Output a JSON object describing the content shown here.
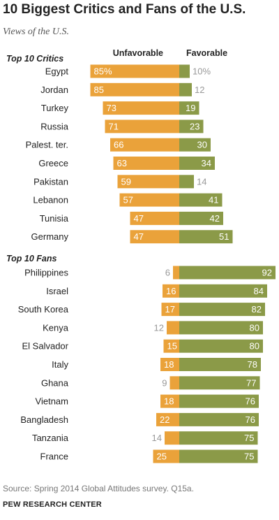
{
  "title": "10 Biggest Critics and Fans of the U.S.",
  "subtitle": "Views of the U.S.",
  "footer": {
    "source": "Source: Spring 2014 Global Attitudes survey. Q15a.",
    "org": "PEW RESEARCH CENTER"
  },
  "colors": {
    "unfavorable": "#eaa23a",
    "favorable": "#8b9a48",
    "label_on_bar": "#ffffff",
    "label_outside": "#999999",
    "text": "#222222"
  },
  "chart_data": {
    "type": "bar",
    "orientation": "horizontal-diverging",
    "column_headers": {
      "unfavorable": "Unfavorable",
      "favorable": "Favorable"
    },
    "groups": [
      {
        "name": "Top 10 Critics",
        "rows": [
          {
            "country": "Egypt",
            "unfavorable": 85,
            "favorable": 10,
            "unfavorable_label": "85%",
            "favorable_label": "10%"
          },
          {
            "country": "Jordan",
            "unfavorable": 85,
            "favorable": 12,
            "unfavorable_label": "85",
            "favorable_label": "12"
          },
          {
            "country": "Turkey",
            "unfavorable": 73,
            "favorable": 19,
            "unfavorable_label": "73",
            "favorable_label": "19"
          },
          {
            "country": "Russia",
            "unfavorable": 71,
            "favorable": 23,
            "unfavorable_label": "71",
            "favorable_label": "23"
          },
          {
            "country": "Palest. ter.",
            "unfavorable": 66,
            "favorable": 30,
            "unfavorable_label": "66",
            "favorable_label": "30"
          },
          {
            "country": "Greece",
            "unfavorable": 63,
            "favorable": 34,
            "unfavorable_label": "63",
            "favorable_label": "34"
          },
          {
            "country": "Pakistan",
            "unfavorable": 59,
            "favorable": 14,
            "unfavorable_label": "59",
            "favorable_label": "14"
          },
          {
            "country": "Lebanon",
            "unfavorable": 57,
            "favorable": 41,
            "unfavorable_label": "57",
            "favorable_label": "41"
          },
          {
            "country": "Tunisia",
            "unfavorable": 47,
            "favorable": 42,
            "unfavorable_label": "47",
            "favorable_label": "42"
          },
          {
            "country": "Germany",
            "unfavorable": 47,
            "favorable": 51,
            "unfavorable_label": "47",
            "favorable_label": "51"
          }
        ]
      },
      {
        "name": "Top 10 Fans",
        "rows": [
          {
            "country": "Philippines",
            "unfavorable": 6,
            "favorable": 92,
            "unfavorable_label": "6",
            "favorable_label": "92"
          },
          {
            "country": "Israel",
            "unfavorable": 16,
            "favorable": 84,
            "unfavorable_label": "16",
            "favorable_label": "84"
          },
          {
            "country": "South Korea",
            "unfavorable": 17,
            "favorable": 82,
            "unfavorable_label": "17",
            "favorable_label": "82"
          },
          {
            "country": "Kenya",
            "unfavorable": 12,
            "favorable": 80,
            "unfavorable_label": "12",
            "favorable_label": "80"
          },
          {
            "country": "El Salvador",
            "unfavorable": 15,
            "favorable": 80,
            "unfavorable_label": "15",
            "favorable_label": "80"
          },
          {
            "country": "Italy",
            "unfavorable": 18,
            "favorable": 78,
            "unfavorable_label": "18",
            "favorable_label": "78"
          },
          {
            "country": "Ghana",
            "unfavorable": 9,
            "favorable": 77,
            "unfavorable_label": "9",
            "favorable_label": "77"
          },
          {
            "country": "Vietnam",
            "unfavorable": 18,
            "favorable": 76,
            "unfavorable_label": "18",
            "favorable_label": "76"
          },
          {
            "country": "Bangladesh",
            "unfavorable": 22,
            "favorable": 76,
            "unfavorable_label": "22",
            "favorable_label": "76"
          },
          {
            "country": "Tanzania",
            "unfavorable": 14,
            "favorable": 75,
            "unfavorable_label": "14",
            "favorable_label": "75"
          },
          {
            "country": "France",
            "unfavorable": 25,
            "favorable": 75,
            "unfavorable_label": "25",
            "favorable_label": "75"
          }
        ]
      }
    ]
  }
}
